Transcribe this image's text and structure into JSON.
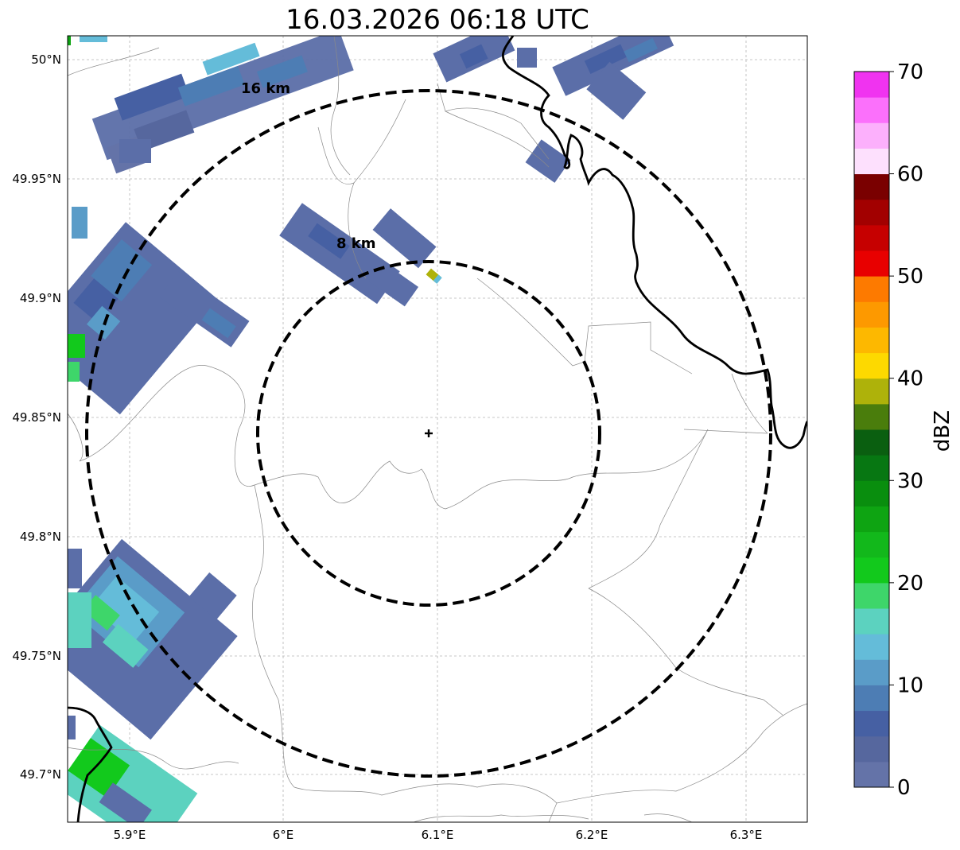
{
  "title": "16.03.2026 06:18 UTC",
  "map": {
    "lat_ticks": [
      "50°N",
      "49.95°N",
      "49.9°N",
      "49.85°N",
      "49.8°N",
      "49.75°N",
      "49.7°N"
    ],
    "lon_ticks": [
      "5.9°E",
      "6°E",
      "6.1°E",
      "6.2°E",
      "6.3°E"
    ],
    "range_rings": [
      {
        "label": "8 km",
        "radius_km": 8
      },
      {
        "label": "16 km",
        "radius_km": 16
      }
    ],
    "radar_site_marker": "plus-icon",
    "gridlines": true,
    "borders": "country and municipal boundaries"
  },
  "colorbar": {
    "label": "dBZ",
    "ticks": [
      "0",
      "10",
      "20",
      "30",
      "40",
      "50",
      "60",
      "70"
    ],
    "min": 0,
    "max": 70,
    "step": 2.5,
    "colors": [
      "#6473a8",
      "#56679e",
      "#4660a3",
      "#4d7db4",
      "#5a9cc8",
      "#64bcd9",
      "#5cd2bf",
      "#3ed66a",
      "#12c91c",
      "#12b81b",
      "#0ea412",
      "#098e0e",
      "#077712",
      "#0a5f10",
      "#4a7d0c",
      "#aeb20a",
      "#fdd900",
      "#fdb800",
      "#fd9900",
      "#fd7a00",
      "#e80000",
      "#c60000",
      "#a20000",
      "#7a0000",
      "#fde0fd",
      "#fcb0fc",
      "#fb70fb",
      "#f033f0"
    ]
  }
}
